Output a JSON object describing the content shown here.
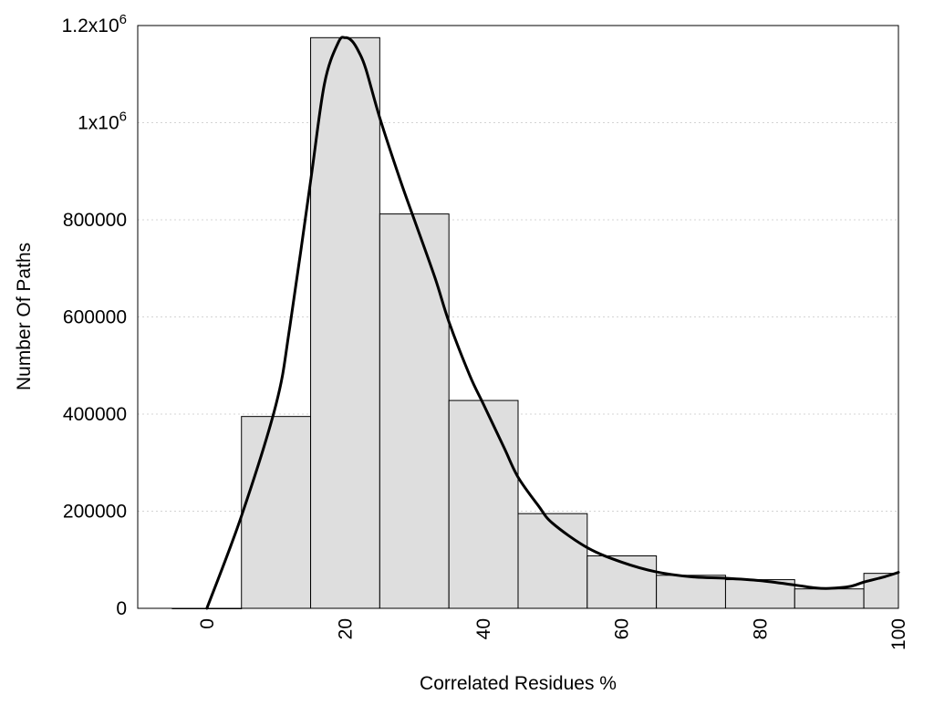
{
  "chart_data": {
    "type": "bar",
    "title": "",
    "xlabel": "Correlated Residues %",
    "ylabel": "Number Of Paths",
    "xlim": [
      -10,
      100
    ],
    "ylim": [
      0,
      1200000
    ],
    "bin_width": 10,
    "grid": true,
    "x_ticks": [
      0,
      20,
      40,
      60,
      80,
      100
    ],
    "y_ticks": [
      {
        "value": 0,
        "label": "0"
      },
      {
        "value": 200000,
        "label": "200000"
      },
      {
        "value": 400000,
        "label": "400000"
      },
      {
        "value": 600000,
        "label": "600000"
      },
      {
        "value": 800000,
        "label": "800000"
      },
      {
        "value": 1000000,
        "label": "1x10",
        "exp": "6"
      },
      {
        "value": 1200000,
        "label": "1.2x10",
        "exp": "6"
      }
    ],
    "bars": [
      {
        "center": 0,
        "value": 0
      },
      {
        "center": 10,
        "value": 395000
      },
      {
        "center": 20,
        "value": 1175000
      },
      {
        "center": 30,
        "value": 812000
      },
      {
        "center": 40,
        "value": 428000
      },
      {
        "center": 50,
        "value": 195000
      },
      {
        "center": 60,
        "value": 108000
      },
      {
        "center": 70,
        "value": 68000
      },
      {
        "center": 80,
        "value": 59000
      },
      {
        "center": 90,
        "value": 40000
      },
      {
        "center": 100,
        "value": 72000
      }
    ],
    "bar_color": "#dedede",
    "curve": {
      "type": "line",
      "color": "#000000",
      "x": [
        0,
        5,
        10,
        12,
        15,
        17,
        19,
        20,
        21,
        22,
        23,
        25,
        28,
        30,
        33,
        35,
        38,
        40,
        43,
        45,
        48,
        50,
        55,
        60,
        65,
        70,
        75,
        80,
        85,
        88,
        90,
        93,
        95,
        98,
        100
      ],
      "y": [
        0,
        190000,
        420000,
        580000,
        880000,
        1080000,
        1165000,
        1175000,
        1168000,
        1145000,
        1110000,
        1010000,
        880000,
        800000,
        680000,
        590000,
        480000,
        420000,
        330000,
        270000,
        210000,
        175000,
        125000,
        95000,
        75000,
        65000,
        62000,
        57000,
        48000,
        42000,
        41000,
        45000,
        54000,
        65000,
        74000
      ]
    }
  }
}
